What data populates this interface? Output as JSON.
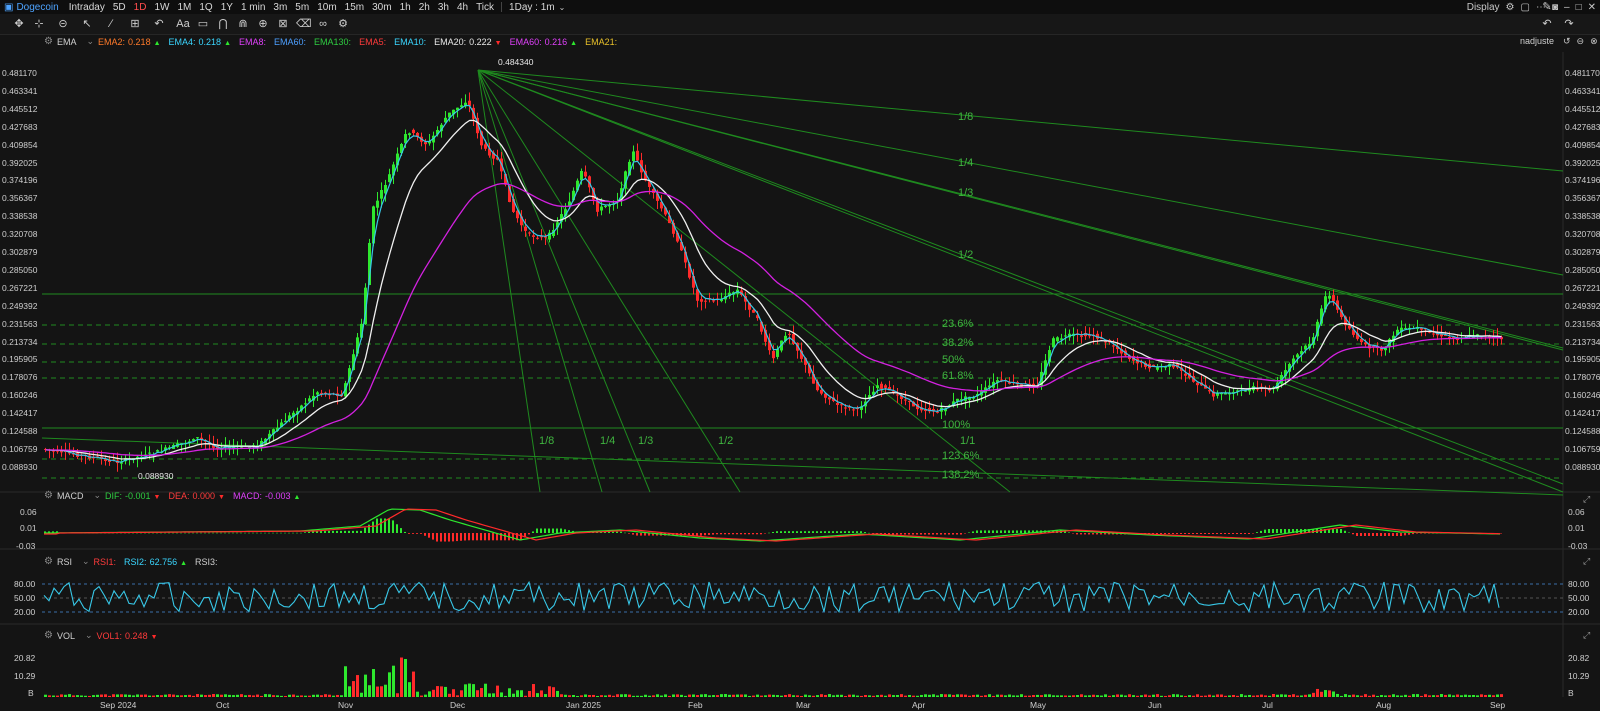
{
  "top": {
    "app_title": "Dogecoin",
    "timeframes": [
      "Intraday",
      "5D",
      "1D",
      "1W",
      "1M",
      "1Q",
      "1Y",
      "1 min",
      "3m",
      "5m",
      "10m",
      "15m",
      "30m",
      "1h",
      "2h",
      "3h",
      "4h",
      "Tick"
    ],
    "active_timeframe": "1D",
    "interval_select": "1Day : 1m",
    "display_label": "Display"
  },
  "legend_main": {
    "name": "EMA",
    "items": [
      {
        "label": "EMA2:",
        "value": "0.218",
        "arrow": "▲",
        "color": "#ff7a2a"
      },
      {
        "label": "EMA4:",
        "value": "0.218",
        "arrow": "▲",
        "color": "#3ad6ff"
      },
      {
        "label": "EMA8:",
        "value": "",
        "arrow": "",
        "color": "#e040fb"
      },
      {
        "label": "EMA60:",
        "value": "",
        "arrow": "",
        "color": "#4d9fff"
      },
      {
        "label": "EMA130:",
        "value": "",
        "arrow": "",
        "color": "#2ecc40"
      },
      {
        "label": "EMA5:",
        "value": "",
        "arrow": "",
        "color": "#ff3b3b"
      },
      {
        "label": "EMA10:",
        "value": "",
        "arrow": "",
        "color": "#3ad6ff"
      },
      {
        "label": "EMA20:",
        "value": "0.222",
        "arrow": "▼",
        "color": "#e8e8e8"
      },
      {
        "label": "EMA60:",
        "value": "0.216",
        "arrow": "▲",
        "color": "#e040fb"
      },
      {
        "label": "EMA21:",
        "value": "",
        "arrow": "",
        "color": "#e8c02a"
      }
    ],
    "user": "nadjuste"
  },
  "legend_macd": {
    "name": "MACD",
    "items": [
      {
        "label": "DIF:",
        "value": "-0.001",
        "arrow": "▼",
        "color": "#2ecc40"
      },
      {
        "label": "DEA:",
        "value": "0.000",
        "arrow": "▼",
        "color": "#ff3b3b"
      },
      {
        "label": "MACD:",
        "value": "-0.003",
        "arrow": "▲",
        "color": "#e040fb"
      }
    ]
  },
  "legend_rsi": {
    "name": "RSI",
    "items": [
      {
        "label": "RSI1:",
        "value": "",
        "arrow": "",
        "color": "#ff3b3b"
      },
      {
        "label": "RSI2:",
        "value": "62.756",
        "arrow": "▲",
        "color": "#3ad6ff"
      },
      {
        "label": "RSI3:",
        "value": "",
        "arrow": "",
        "color": "#cfcfcf"
      }
    ]
  },
  "legend_vol": {
    "name": "VOL",
    "items": [
      {
        "label": "VOL1:",
        "value": "0.248",
        "arrow": "▼",
        "color": "#ff3b3b"
      }
    ]
  },
  "price_axis": [
    "0.481170",
    "0.463341",
    "0.445512",
    "0.427683",
    "0.409854",
    "0.392025",
    "0.374196",
    "0.356367",
    "0.338538",
    "0.320708",
    "0.302879",
    "0.285050",
    "0.267221",
    "0.249392",
    "0.231563",
    "0.213734",
    "0.195905",
    "0.178076",
    "0.160246",
    "0.142417",
    "0.124588",
    "0.106759",
    "0.088930"
  ],
  "macd_axis": [
    "0.06",
    "0.01",
    "-0.03"
  ],
  "rsi_axis": [
    "80.00",
    "50.00",
    "20.00"
  ],
  "vol_axis": [
    "20.82",
    "10.29",
    "B"
  ],
  "x_axis": [
    "Sep 2024",
    "Oct",
    "Nov",
    "Dec",
    "Jan 2025",
    "Feb",
    "Mar",
    "Apr",
    "May",
    "Jun",
    "Jul",
    "Aug",
    "Sep"
  ],
  "annotations": {
    "high": "0.484340",
    "low": "0.088930",
    "fan_right": [
      "1/8",
      "1/4",
      "1/3",
      "1/2"
    ],
    "fan_left": [
      "1/8",
      "1/4",
      "1/3",
      "1/2",
      "1/1"
    ],
    "fib": [
      "23.6%",
      "38.2%",
      "50%",
      "61.8%",
      "100%",
      "123.6%",
      "138.2%"
    ]
  },
  "colors": {
    "up": "#2ee82e",
    "down": "#ff2a2a",
    "ema_white": "#f0f0f0",
    "ema_mag": "#d321e0",
    "rsi": "#38c8e8",
    "grid_green": "#1f8a1f"
  }
}
